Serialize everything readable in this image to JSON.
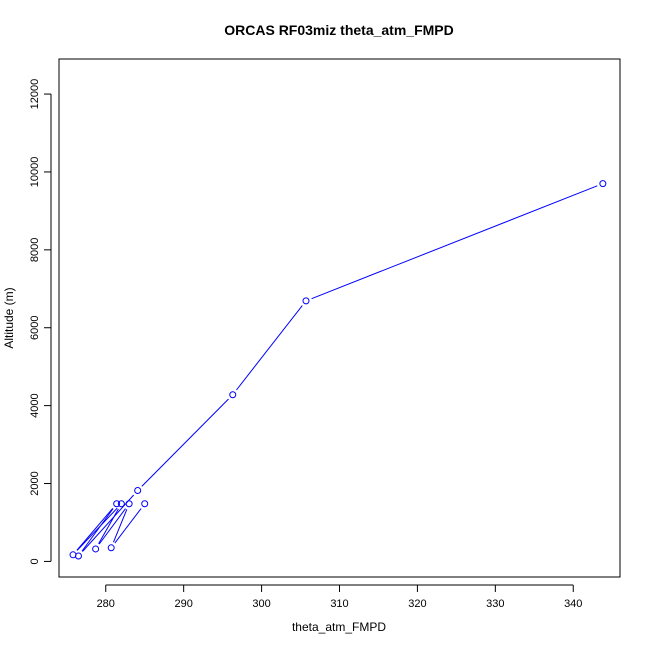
{
  "chart_data": {
    "type": "line",
    "title": "ORCAS RF03miz theta_atm_FMPD",
    "xlabel": "theta_atm_FMPD",
    "ylabel": "Altitude (m)",
    "xlim": [
      274,
      346
    ],
    "ylim": [
      -400,
      12900
    ],
    "x_ticks": [
      280,
      290,
      300,
      310,
      320,
      330,
      340
    ],
    "y_ticks": [
      0,
      2000,
      4000,
      6000,
      8000,
      10000,
      12000
    ],
    "grid": false,
    "legend": "none",
    "colors": {
      "series": "#0000ff",
      "axes": "#000000"
    },
    "series": [
      {
        "x": [
          343.8,
          305.7,
          296.3,
          284.1,
          276.5,
          281.4,
          275.8,
          282.0,
          278.7,
          283.0,
          280.7,
          285.0
        ],
        "y": [
          9700,
          6690,
          4280,
          1820,
          140,
          1480,
          170,
          1480,
          320,
          1480,
          350,
          1480
        ]
      }
    ]
  }
}
